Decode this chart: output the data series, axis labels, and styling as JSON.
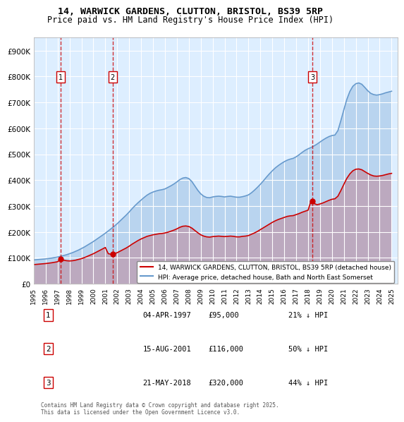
{
  "title": "14, WARWICK GARDENS, CLUTTON, BRISTOL, BS39 5RP",
  "subtitle": "Price paid vs. HM Land Registry's House Price Index (HPI)",
  "ylabel": "",
  "xlim_start": 1995.0,
  "xlim_end": 2025.5,
  "ylim_bottom": 0,
  "ylim_top": 950000,
  "yticks": [
    0,
    100000,
    200000,
    300000,
    400000,
    500000,
    600000,
    700000,
    800000,
    900000
  ],
  "ytick_labels": [
    "£0",
    "£100K",
    "£200K",
    "£300K",
    "£400K",
    "£500K",
    "£600K",
    "£700K",
    "£800K",
    "£900K"
  ],
  "xticks": [
    1995,
    1996,
    1997,
    1998,
    1999,
    2000,
    2001,
    2002,
    2003,
    2004,
    2005,
    2006,
    2007,
    2008,
    2009,
    2010,
    2011,
    2012,
    2013,
    2014,
    2015,
    2016,
    2017,
    2018,
    2019,
    2020,
    2021,
    2022,
    2023,
    2024,
    2025
  ],
  "sale_dates": [
    1997.26,
    2001.62,
    2018.38
  ],
  "sale_prices": [
    95000,
    116000,
    320000
  ],
  "sale_labels": [
    "1",
    "2",
    "3"
  ],
  "hpi_color": "#6699cc",
  "sale_color": "#cc0000",
  "vline_color": "#cc0000",
  "bg_color": "#ddeeff",
  "grid_color": "#ffffff",
  "legend_label_red": "14, WARWICK GARDENS, CLUTTON, BRISTOL, BS39 5RP (detached house)",
  "legend_label_blue": "HPI: Average price, detached house, Bath and North East Somerset",
  "table_entries": [
    {
      "num": "1",
      "date": "04-APR-1997",
      "price": "£95,000",
      "pct": "21% ↓ HPI"
    },
    {
      "num": "2",
      "date": "15-AUG-2001",
      "price": "£116,000",
      "pct": "50% ↓ HPI"
    },
    {
      "num": "3",
      "date": "21-MAY-2018",
      "price": "£320,000",
      "pct": "44% ↓ HPI"
    }
  ],
  "footer": "Contains HM Land Registry data © Crown copyright and database right 2025.\nThis data is licensed under the Open Government Licence v3.0.",
  "hpi_data_x": [
    1995.0,
    1995.25,
    1995.5,
    1995.75,
    1996.0,
    1996.25,
    1996.5,
    1996.75,
    1997.0,
    1997.25,
    1997.5,
    1997.75,
    1998.0,
    1998.25,
    1998.5,
    1998.75,
    1999.0,
    1999.25,
    1999.5,
    1999.75,
    2000.0,
    2000.25,
    2000.5,
    2000.75,
    2001.0,
    2001.25,
    2001.5,
    2001.75,
    2002.0,
    2002.25,
    2002.5,
    2002.75,
    2003.0,
    2003.25,
    2003.5,
    2003.75,
    2004.0,
    2004.25,
    2004.5,
    2004.75,
    2005.0,
    2005.25,
    2005.5,
    2005.75,
    2006.0,
    2006.25,
    2006.5,
    2006.75,
    2007.0,
    2007.25,
    2007.5,
    2007.75,
    2008.0,
    2008.25,
    2008.5,
    2008.75,
    2009.0,
    2009.25,
    2009.5,
    2009.75,
    2010.0,
    2010.25,
    2010.5,
    2010.75,
    2011.0,
    2011.25,
    2011.5,
    2011.75,
    2012.0,
    2012.25,
    2012.5,
    2012.75,
    2013.0,
    2013.25,
    2013.5,
    2013.75,
    2014.0,
    2014.25,
    2014.5,
    2014.75,
    2015.0,
    2015.25,
    2015.5,
    2015.75,
    2016.0,
    2016.25,
    2016.5,
    2016.75,
    2017.0,
    2017.25,
    2017.5,
    2017.75,
    2018.0,
    2018.25,
    2018.5,
    2018.75,
    2019.0,
    2019.25,
    2019.5,
    2019.75,
    2020.0,
    2020.25,
    2020.5,
    2020.75,
    2021.0,
    2021.25,
    2021.5,
    2021.75,
    2022.0,
    2022.25,
    2022.5,
    2022.75,
    2023.0,
    2023.25,
    2023.5,
    2023.75,
    2024.0,
    2024.25,
    2024.5,
    2024.75,
    2025.0
  ],
  "hpi_data_y": [
    92000,
    93000,
    94000,
    95000,
    96000,
    97500,
    99000,
    101000,
    103000,
    106000,
    109000,
    112000,
    116000,
    120000,
    125000,
    130000,
    136000,
    142000,
    149000,
    156000,
    163000,
    171000,
    179000,
    187000,
    195000,
    204000,
    213000,
    222000,
    232000,
    243000,
    254000,
    265000,
    277000,
    290000,
    302000,
    313000,
    323000,
    333000,
    342000,
    349000,
    354000,
    358000,
    361000,
    363000,
    366000,
    372000,
    378000,
    385000,
    393000,
    402000,
    408000,
    410000,
    406000,
    395000,
    378000,
    361000,
    347000,
    338000,
    333000,
    332000,
    335000,
    337000,
    338000,
    337000,
    335000,
    337000,
    338000,
    336000,
    334000,
    334000,
    336000,
    339000,
    343000,
    351000,
    361000,
    372000,
    384000,
    397000,
    411000,
    424000,
    436000,
    447000,
    456000,
    464000,
    471000,
    477000,
    481000,
    484000,
    490000,
    498000,
    507000,
    515000,
    521000,
    526000,
    532000,
    539000,
    547000,
    555000,
    562000,
    568000,
    572000,
    574000,
    591000,
    630000,
    672000,
    712000,
    742000,
    762000,
    772000,
    775000,
    770000,
    758000,
    745000,
    735000,
    730000,
    728000,
    730000,
    733000,
    737000,
    740000,
    743000
  ],
  "red_data_x": [
    1995.0,
    1995.25,
    1995.5,
    1995.75,
    1996.0,
    1996.25,
    1996.5,
    1996.75,
    1997.0,
    1997.25,
    1997.5,
    1997.75,
    1998.0,
    1998.25,
    1998.5,
    1998.75,
    1999.0,
    1999.25,
    1999.5,
    1999.75,
    2000.0,
    2000.25,
    2000.5,
    2000.75,
    2001.0,
    2001.25,
    2001.5,
    2001.75,
    2002.0,
    2002.25,
    2002.5,
    2002.75,
    2003.0,
    2003.25,
    2003.5,
    2003.75,
    2004.0,
    2004.25,
    2004.5,
    2004.75,
    2005.0,
    2005.25,
    2005.5,
    2005.75,
    2006.0,
    2006.25,
    2006.5,
    2006.75,
    2007.0,
    2007.25,
    2007.5,
    2007.75,
    2008.0,
    2008.25,
    2008.5,
    2008.75,
    2009.0,
    2009.25,
    2009.5,
    2009.75,
    2010.0,
    2010.25,
    2010.5,
    2010.75,
    2011.0,
    2011.25,
    2011.5,
    2011.75,
    2012.0,
    2012.25,
    2012.5,
    2012.75,
    2013.0,
    2013.25,
    2013.5,
    2013.75,
    2014.0,
    2014.25,
    2014.5,
    2014.75,
    2015.0,
    2015.25,
    2015.5,
    2015.75,
    2016.0,
    2016.25,
    2016.5,
    2016.75,
    2017.0,
    2017.25,
    2017.5,
    2017.75,
    2018.0,
    2018.25,
    2018.5,
    2018.75,
    2019.0,
    2019.25,
    2019.5,
    2019.75,
    2020.0,
    2020.25,
    2020.5,
    2020.75,
    2021.0,
    2021.25,
    2021.5,
    2021.75,
    2022.0,
    2022.25,
    2022.5,
    2022.75,
    2023.0,
    2023.25,
    2023.5,
    2023.75,
    2024.0,
    2024.25,
    2024.5,
    2024.75,
    2025.0
  ],
  "red_data_y": [
    74000,
    75000,
    76000,
    77000,
    78000,
    79500,
    81000,
    83000,
    85000,
    95000,
    91000,
    89000,
    88000,
    89000,
    91000,
    94000,
    97000,
    101000,
    106000,
    111000,
    116000,
    122000,
    128000,
    134000,
    140000,
    116000,
    114000,
    116000,
    120000,
    126000,
    132000,
    138000,
    145000,
    153000,
    160000,
    167000,
    173000,
    178000,
    183000,
    186000,
    189000,
    191000,
    193000,
    194000,
    196000,
    199000,
    203000,
    207000,
    212000,
    218000,
    222000,
    223000,
    221000,
    215000,
    206000,
    197000,
    189000,
    184000,
    181000,
    180000,
    182000,
    183000,
    184000,
    183000,
    182000,
    183000,
    184000,
    183000,
    181000,
    181000,
    183000,
    184000,
    186000,
    191000,
    196000,
    202000,
    209000,
    216000,
    223000,
    230000,
    237000,
    243000,
    248000,
    252000,
    256000,
    260000,
    262000,
    263000,
    267000,
    271000,
    276000,
    280000,
    284000,
    320000,
    310000,
    305000,
    308000,
    312000,
    317000,
    322000,
    326000,
    328000,
    338000,
    360000,
    384000,
    407000,
    424000,
    436000,
    442000,
    443000,
    440000,
    433000,
    426000,
    420000,
    416000,
    415000,
    416000,
    418000,
    421000,
    424000,
    426000
  ]
}
